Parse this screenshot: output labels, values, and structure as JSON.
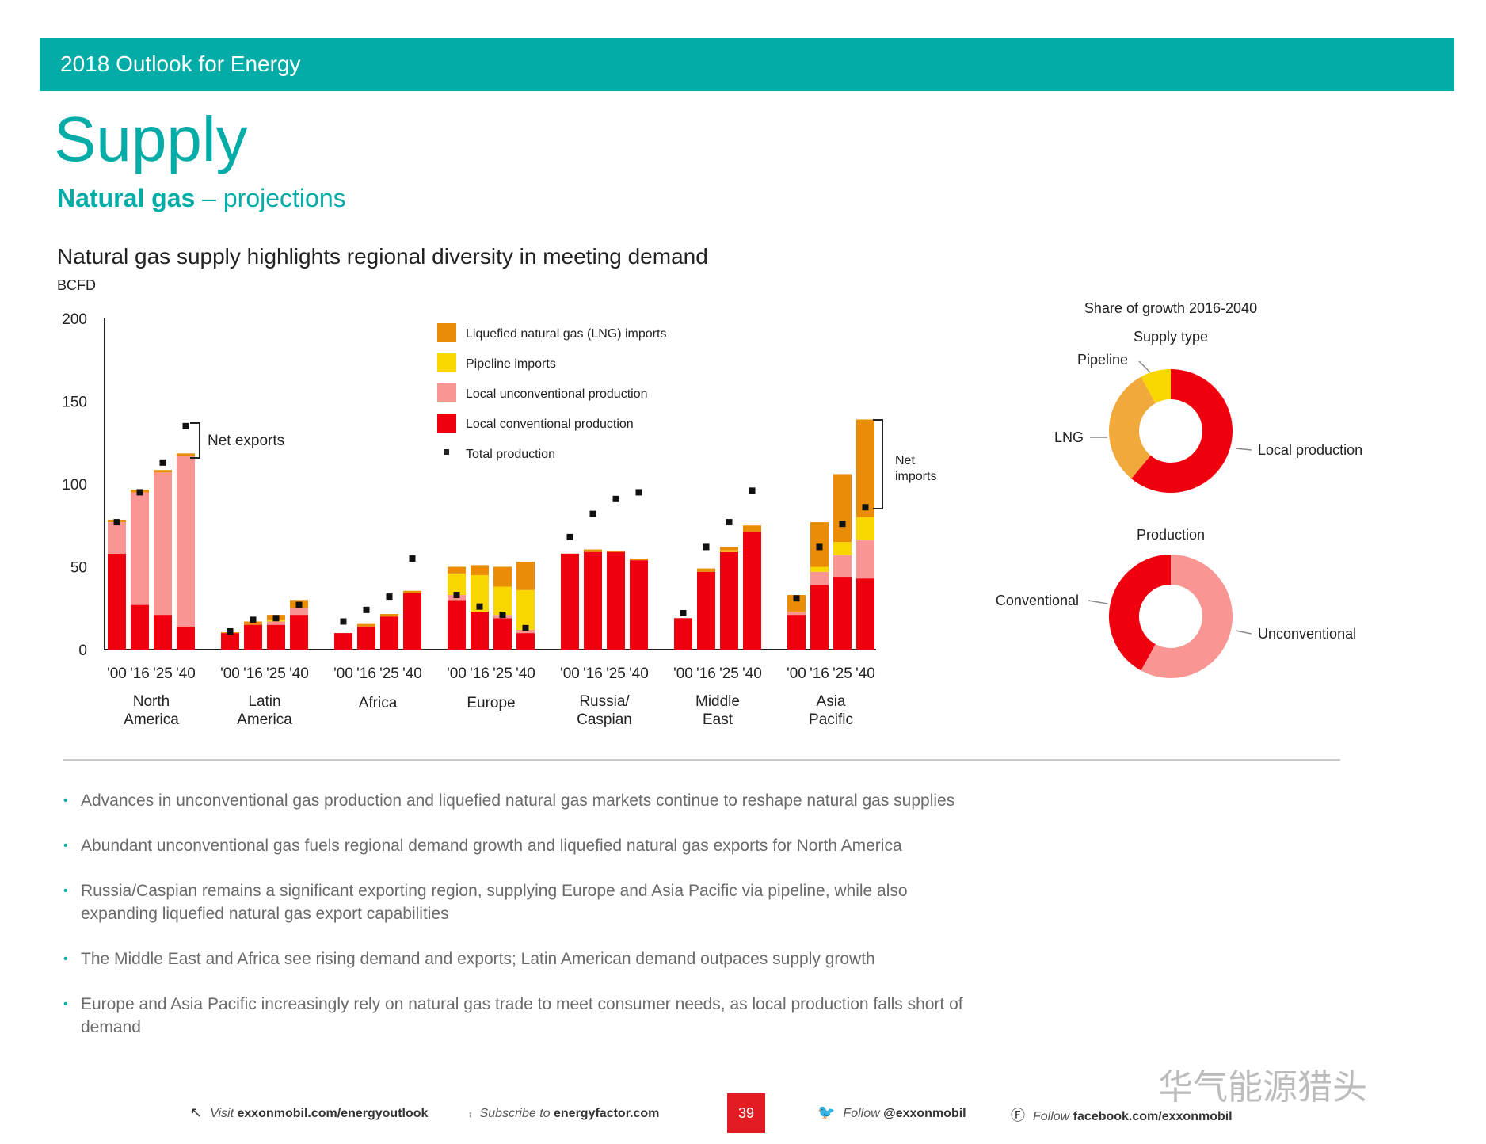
{
  "header": {
    "band_title": "2018 Outlook for Energy"
  },
  "page": {
    "title": "Supply",
    "subtitle_bold": "Natural gas",
    "subtitle_rest": " – projections"
  },
  "chart_data": [
    {
      "type": "bar",
      "stacked": true,
      "title": "Natural gas supply highlights regional diversity in meeting demand",
      "ylabel": "BCFD",
      "ylim": [
        0,
        200
      ],
      "yticks": [
        "0",
        "50",
        "100",
        "150",
        "200"
      ],
      "year_labels": [
        "'00",
        "'16",
        "'25",
        "'40"
      ],
      "series": [
        {
          "name": "Local conventional production",
          "color": "#f0000f"
        },
        {
          "name": "Local unconventional production",
          "color": "#f99694"
        },
        {
          "name": "Pipeline imports",
          "color": "#f9d600"
        },
        {
          "name": "Liquefied natural gas (LNG) imports",
          "color": "#ea8c06"
        }
      ],
      "total_marker": {
        "name": "Total production",
        "color": "#111111"
      },
      "groups": [
        {
          "region": [
            "North",
            "America"
          ],
          "bars": [
            [
              58,
              19,
              0,
              1.5
            ],
            [
              27,
              68,
              0,
              1.5
            ],
            [
              21,
              86,
              0,
              1.5
            ],
            [
              14,
              103,
              0,
              1.5
            ]
          ],
          "totals": [
            77,
            95,
            113,
            135
          ]
        },
        {
          "region": [
            "Latin",
            "America"
          ],
          "bars": [
            [
              10,
              0,
              0,
              0.5
            ],
            [
              15,
              0,
              0,
              2
            ],
            [
              15,
              2,
              1,
              3
            ],
            [
              21,
              4,
              0,
              5
            ]
          ],
          "totals": [
            11,
            18,
            19,
            27
          ]
        },
        {
          "region": [
            "Africa"
          ],
          "bars": [
            [
              10,
              0,
              0,
              0
            ],
            [
              14,
              0,
              0,
              1.5
            ],
            [
              20,
              0,
              0,
              1.5
            ],
            [
              34,
              0,
              0,
              1.5
            ]
          ],
          "totals": [
            17,
            24,
            32,
            55
          ]
        },
        {
          "region": [
            "Europe"
          ],
          "bars": [
            [
              30,
              3,
              13,
              4
            ],
            [
              23,
              0,
              22,
              6
            ],
            [
              19,
              2,
              17,
              12
            ],
            [
              10,
              2,
              24,
              17
            ]
          ],
          "totals": [
            33,
            26,
            21,
            13
          ]
        },
        {
          "region": [
            "Russia/",
            "Caspian"
          ],
          "bars": [
            [
              58,
              0,
              0,
              0
            ],
            [
              59,
              0,
              0,
              1.5
            ],
            [
              59,
              0,
              0,
              0.5
            ],
            [
              54,
              0,
              0,
              1
            ]
          ],
          "totals": [
            68,
            82,
            91,
            95
          ]
        },
        {
          "region": [
            "Middle",
            "East"
          ],
          "bars": [
            [
              19,
              0,
              0,
              0
            ],
            [
              47,
              0,
              0,
              2
            ],
            [
              59,
              0,
              1,
              2
            ],
            [
              71,
              0,
              0,
              4
            ]
          ],
          "totals": [
            22,
            62,
            77,
            96
          ]
        },
        {
          "region": [
            "Asia",
            "Pacific"
          ],
          "bars": [
            [
              21,
              2,
              0,
              10
            ],
            [
              39,
              8,
              3,
              27
            ],
            [
              44,
              13,
              8,
              41
            ],
            [
              43,
              23,
              14,
              59
            ]
          ],
          "totals": [
            31,
            62,
            76,
            86
          ]
        }
      ],
      "annotations": {
        "net_exports": "Net exports",
        "net_imports_1": "Net",
        "net_imports_2": "imports"
      }
    },
    {
      "type": "pie",
      "donut": true,
      "title": "Share of growth 2016-2040",
      "subtitle": "Supply type",
      "slices": [
        {
          "label": "Local production",
          "value": 61,
          "color": "#f0000f"
        },
        {
          "label": "LNG",
          "value": 31,
          "color": "#f0a93a"
        },
        {
          "label": "Pipeline",
          "value": 8,
          "color": "#f9d600"
        }
      ]
    },
    {
      "type": "pie",
      "donut": true,
      "title": "Production",
      "slices": [
        {
          "label": "Unconventional",
          "value": 58,
          "color": "#f99694"
        },
        {
          "label": "Conventional",
          "value": 42,
          "color": "#f0000f"
        }
      ]
    }
  ],
  "bullets": [
    "Advances in unconventional gas production and liquefied natural gas markets continue to reshape natural gas supplies",
    "Abundant unconventional gas fuels regional demand growth and liquefied natural gas exports for North America",
    "Russia/Caspian remains a significant exporting region, supplying Europe and Asia Pacific via pipeline, while also expanding liquefied natural gas export capabilities",
    "The Middle East and Africa see rising demand and exports; Latin American demand outpaces supply growth",
    "Europe and Asia Pacific increasingly rely on natural gas trade to meet consumer needs, as local production falls short of demand"
  ],
  "footer": {
    "visit_prefix": "Visit ",
    "visit_link": "exxonmobil.com/energyoutlook",
    "subscribe_prefix": "Subscribe to ",
    "subscribe_link": "energyfactor.com",
    "page_number": "39",
    "twitter_prefix": "Follow ",
    "twitter_link": "@exxonmobil",
    "facebook_prefix": "Follow ",
    "facebook_link": "facebook.com/exxonmobil"
  },
  "watermark": "华气能源猎头",
  "icons": [
    "cursor-icon",
    "rss-icon",
    "twitter-icon",
    "facebook-icon"
  ]
}
